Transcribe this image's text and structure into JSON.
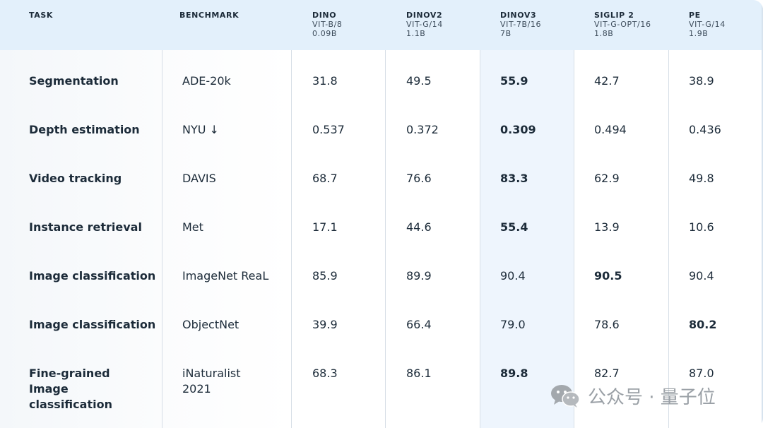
{
  "header": {
    "task": "TASK",
    "benchmark": "BENCHMARK",
    "models": [
      {
        "name": "DINO",
        "arch": "VIT-B/8",
        "size": "0.09B"
      },
      {
        "name": "DINOV2",
        "arch": "VIT-G/14",
        "size": "1.1B"
      },
      {
        "name": "DINOV3",
        "arch": "VIT-7B/16",
        "size": "7B"
      },
      {
        "name": "SIGLIP 2",
        "arch": "VIT-G-OPT/16",
        "size": "1.8B"
      },
      {
        "name": "PE",
        "arch": "VIT-G/14",
        "size": "1.9B"
      }
    ]
  },
  "rows": [
    {
      "task": "Segmentation",
      "benchmark": "ADE-20k",
      "values": [
        "31.8",
        "49.5",
        "55.9",
        "42.7",
        "38.9"
      ],
      "best": 2
    },
    {
      "task": "Depth estimation",
      "benchmark": "NYU ↓",
      "values": [
        "0.537",
        "0.372",
        "0.309",
        "0.494",
        "0.436"
      ],
      "best": 2
    },
    {
      "task": "Video tracking",
      "benchmark": "DAVIS",
      "values": [
        "68.7",
        "76.6",
        "83.3",
        "62.9",
        "49.8"
      ],
      "best": 2
    },
    {
      "task": "Instance retrieval",
      "benchmark": "Met",
      "values": [
        "17.1",
        "44.6",
        "55.4",
        "13.9",
        "10.6"
      ],
      "best": 2
    },
    {
      "task": "Image classification",
      "benchmark": "ImageNet ReaL",
      "values": [
        "85.9",
        "89.9",
        "90.4",
        "90.5",
        "90.4"
      ],
      "best": 3
    },
    {
      "task": "Image classification",
      "benchmark": "ObjectNet",
      "values": [
        "39.9",
        "66.4",
        "79.0",
        "78.6",
        "80.2"
      ],
      "best": 4
    },
    {
      "task": "Fine-grained Image classification",
      "benchmark": "iNaturalist 2021",
      "values": [
        "68.3",
        "86.1",
        "89.8",
        "82.7",
        "87.0"
      ],
      "best": 2
    }
  ],
  "watermark": {
    "text": "公众号 · 量子位",
    "icon": "wechat-icon"
  }
}
